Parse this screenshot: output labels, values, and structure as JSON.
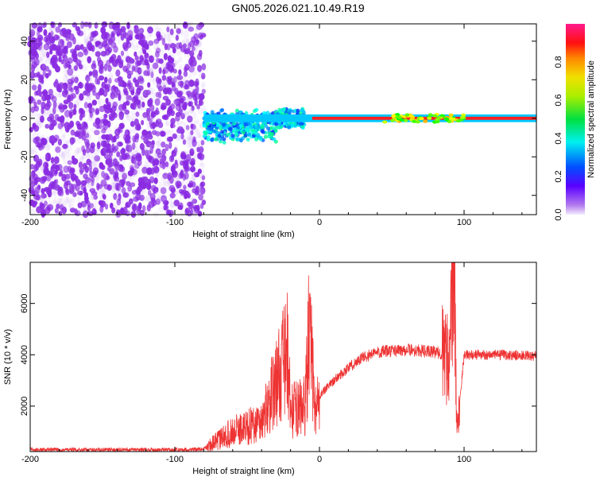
{
  "title": "GN05.2026.021.10.49.R19",
  "chart_data": [
    {
      "type": "heatmap",
      "title": "GN05.2026.021.10.49.R19",
      "xlabel": "Height of straight line (km)",
      "ylabel": "Frequency (Hz)",
      "xlim": [
        -200,
        150
      ],
      "ylim": [
        -50,
        49
      ],
      "xticks": [
        "-200",
        "-100",
        "0",
        "100"
      ],
      "xtick_values": [
        -200,
        -100,
        0,
        100
      ],
      "yticks": [
        "-40",
        "-20",
        "0",
        "20",
        "40"
      ],
      "ytick_values": [
        -40,
        -20,
        0,
        20,
        40
      ],
      "colorbar": {
        "label": "Normalized spectral amplitude",
        "ticks": [
          "0.0",
          "0.2",
          "0.4",
          "0.6",
          "0.8"
        ],
        "tick_values": [
          0,
          0.2,
          0.4,
          0.6,
          0.8
        ],
        "range": [
          0,
          1
        ]
      },
      "description_regions": {
        "noise_x_range": [
          -200,
          -80
        ],
        "signal_frequency": 0
      }
    },
    {
      "type": "line",
      "xlabel": "Height of straight line (km)",
      "ylabel": "SNR (10 * v/v)",
      "xlim": [
        -200,
        150
      ],
      "ylim": [
        230,
        7600
      ],
      "xticks": [
        "-200",
        "-100",
        "0",
        "100"
      ],
      "xtick_values": [
        -200,
        -100,
        0,
        100
      ],
      "yticks": [
        "2000",
        "4000",
        "6000"
      ],
      "ytick_values": [
        2000,
        4000,
        6000
      ],
      "color": "#ee3333",
      "series": [
        {
          "name": "SNR",
          "x": [
            -200,
            -150,
            -100,
            -80,
            -75,
            -60,
            -40,
            -22,
            -20,
            -10,
            -7,
            -3,
            0,
            10,
            20,
            30,
            40,
            60,
            80,
            90,
            93,
            95,
            100,
            120,
            150
          ],
          "y": [
            300,
            300,
            300,
            320,
            500,
            1000,
            1400,
            4100,
            1800,
            2000,
            5000,
            1800,
            2400,
            3000,
            3500,
            3900,
            4100,
            4200,
            4100,
            4000,
            7600,
            1000,
            4000,
            4000,
            3950
          ]
        }
      ]
    }
  ]
}
